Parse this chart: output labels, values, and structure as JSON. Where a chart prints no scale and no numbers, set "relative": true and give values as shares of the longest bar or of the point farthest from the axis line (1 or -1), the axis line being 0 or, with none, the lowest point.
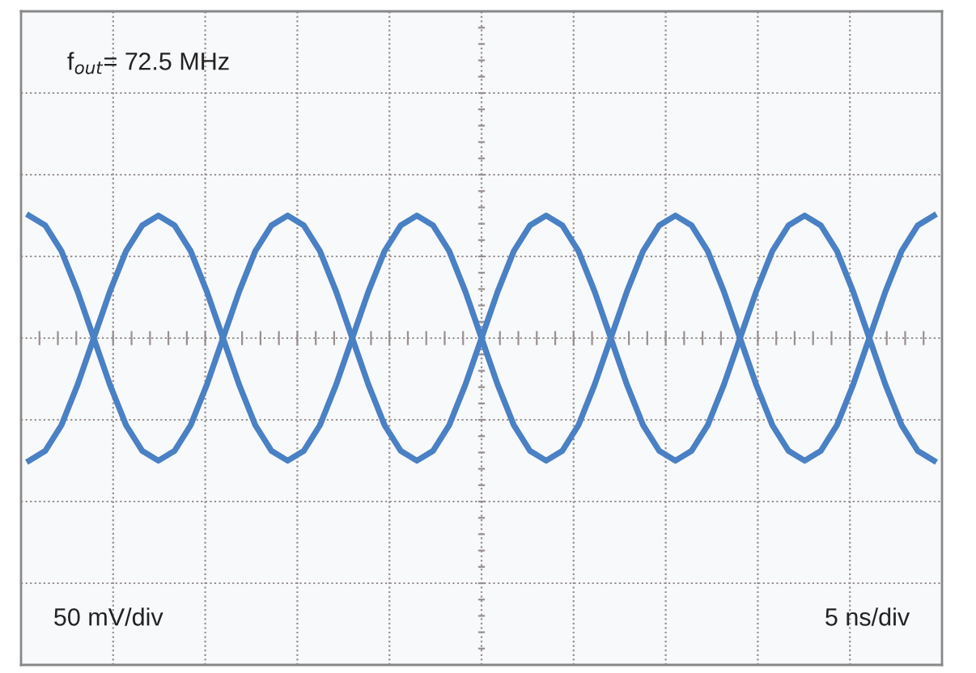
{
  "chart_data": {
    "type": "line",
    "relative": true,
    "grid": true,
    "legend": false,
    "marker": "none",
    "line_style": "solid",
    "categories": [
      null,
      null,
      null,
      null,
      null,
      null,
      null,
      null,
      null,
      null,
      null,
      null,
      null,
      null,
      null,
      null,
      null,
      null,
      null,
      null,
      null,
      null,
      null,
      null,
      null,
      null,
      null,
      null,
      null,
      null,
      null,
      null,
      null,
      null,
      null,
      null,
      null,
      null,
      null,
      null,
      null,
      null,
      null,
      null,
      null,
      null,
      null,
      null,
      null,
      null,
      null,
      null,
      null,
      null,
      null,
      null,
      null
    ],
    "series": [
      {
        "color": "#4a80c4",
        "values": [
          1,
          0.92,
          0.71,
          0.38,
          0,
          -0.38,
          -0.71,
          -0.92,
          -1,
          -0.92,
          -0.71,
          -0.38,
          0,
          0.38,
          0.71,
          0.92,
          1,
          0.92,
          0.71,
          0.38,
          0,
          -0.38,
          -0.71,
          -0.92,
          -1,
          -0.92,
          -0.71,
          -0.38,
          0,
          0.38,
          0.71,
          0.92,
          1,
          0.92,
          0.71,
          0.38,
          0,
          -0.38,
          -0.71,
          -0.92,
          -1,
          -0.92,
          -0.71,
          -0.38,
          0,
          0.38,
          0.71,
          0.92,
          1,
          0.92,
          0.71,
          0.38,
          0,
          -0.38,
          -0.71,
          -0.92,
          -1
        ]
      },
      {
        "color": "#4a80c4",
        "values": [
          -1,
          -0.92,
          -0.71,
          -0.38,
          0,
          0.38,
          0.71,
          0.92,
          1,
          0.92,
          0.71,
          0.38,
          0,
          -0.38,
          -0.71,
          -0.92,
          -1,
          -0.92,
          -0.71,
          -0.38,
          0,
          0.38,
          0.71,
          0.92,
          1,
          0.92,
          0.71,
          0.38,
          0,
          -0.38,
          -0.71,
          -0.92,
          -1,
          -0.92,
          -0.71,
          -0.38,
          0,
          0.38,
          0.71,
          0.92,
          1,
          0.92,
          0.71,
          0.38,
          0,
          -0.38,
          -0.71,
          -0.92,
          -1,
          -0.92,
          -0.71,
          -0.38,
          0,
          0.38,
          0.71,
          0.92,
          1
        ]
      }
    ],
    "annotations": [
      "f$_{out}$= 72.5 MHz",
      "50 mV/div",
      "5 ns/div"
    ]
  }
}
